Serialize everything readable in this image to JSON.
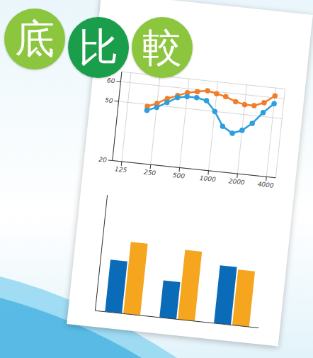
{
  "badges": [
    {
      "text": "底",
      "color": "#8cc63f"
    },
    {
      "text": "比",
      "color": "#1a9e4b"
    },
    {
      "text": "較",
      "color": "#8cc63f"
    }
  ],
  "chart_data": [
    {
      "type": "line",
      "log": "x",
      "x": [
        200,
        250,
        315,
        400,
        500,
        630,
        800,
        1000,
        1250,
        1600,
        2000,
        2500,
        3150,
        4000
      ],
      "series": [
        {
          "color": "#f07d28",
          "values": [
            49,
            51,
            54,
            56,
            58,
            59,
            60,
            59,
            58,
            56,
            55,
            55,
            57,
            61
          ]
        },
        {
          "color": "#2d9fdc",
          "values": [
            47,
            49,
            52,
            55,
            56,
            56,
            55,
            50,
            43,
            40,
            42,
            46,
            52,
            57
          ]
        }
      ],
      "xlim": [
        100,
        5000
      ],
      "xticks": [
        125,
        250,
        500,
        1000,
        2000,
        4000
      ],
      "ylim": [
        20,
        65
      ],
      "yticks": [
        20,
        50,
        60
      ],
      "grid": true,
      "marker": "circle"
    },
    {
      "type": "bar",
      "categories": [
        null,
        null,
        null
      ],
      "series": [
        {
          "color": "#0a6cb8",
          "values": [
            45,
            32,
            50
          ]
        },
        {
          "color": "#f5a51e",
          "values": [
            62,
            60,
            48
          ]
        }
      ],
      "ylim": [
        0,
        100
      ],
      "tick_labels": false
    }
  ]
}
